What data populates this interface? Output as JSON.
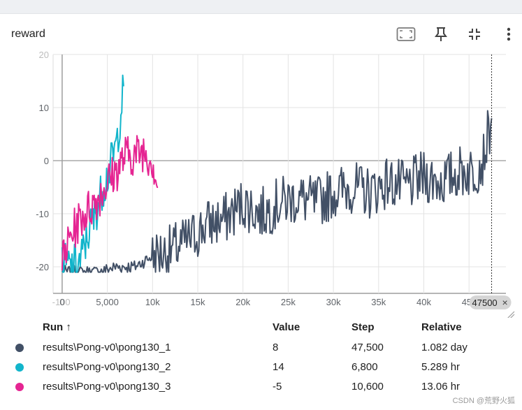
{
  "card": {
    "title": "reward"
  },
  "toolbar": {
    "icons": [
      "fit-screen-icon",
      "pin-icon",
      "collapse-icon",
      "more-vert-icon"
    ]
  },
  "chart_data": {
    "type": "line",
    "title": "reward",
    "xlim": [
      -1000,
      48000
    ],
    "ylim": [
      -25,
      20
    ],
    "x_ticks": [
      "-100",
      "0",
      "5,000",
      "10k",
      "15k",
      "20k",
      "25k",
      "30k",
      "35k",
      "40k",
      "45k"
    ],
    "y_ticks": [
      "20",
      "10",
      "0",
      "-10",
      "-20"
    ],
    "grid": true,
    "hover_step_label": "47500",
    "hover_close": "×",
    "series": [
      {
        "name": "results\\Pong-v0\\pong130_1",
        "color": "#425066",
        "x": [
          0,
          2000,
          4000,
          6000,
          8000,
          9000,
          10000,
          12000,
          14000,
          16000,
          18000,
          20000,
          22000,
          24000,
          26000,
          28000,
          30000,
          32000,
          34000,
          36000,
          38000,
          40000,
          42000,
          44000,
          45500,
          46500,
          47500
        ],
        "y": [
          -21,
          -21,
          -21,
          -20,
          -20,
          -19,
          -18,
          -17,
          -15,
          -12,
          -11,
          -8,
          -10,
          -8,
          -7,
          -8,
          -6,
          -5,
          -6,
          -4,
          -5,
          -3,
          -4,
          -2,
          -2,
          0,
          8
        ]
      },
      {
        "name": "results\\Pong-v0\\pong130_2",
        "color": "#12b5cb",
        "x": [
          0,
          1000,
          2000,
          2500,
          3000,
          3500,
          4000,
          4500,
          5000,
          5500,
          6000,
          6400,
          6800
        ],
        "y": [
          -19,
          -20,
          -19,
          -16,
          -13,
          -11,
          -8,
          -5,
          -3,
          0,
          3,
          8,
          14
        ]
      },
      {
        "name": "results\\Pong-v0\\pong130_3",
        "color": "#e52592",
        "x": [
          0,
          1000,
          2000,
          3000,
          4000,
          5000,
          6000,
          7000,
          8000,
          9000,
          10000,
          10600
        ],
        "y": [
          -19,
          -14,
          -11,
          -9,
          -7,
          -4,
          -2,
          1,
          1,
          2,
          0,
          -5
        ]
      }
    ]
  },
  "table": {
    "headers": {
      "run": "Run ↑",
      "value": "Value",
      "step": "Step",
      "relative": "Relative"
    },
    "rows": [
      {
        "color": "#425066",
        "run": "results\\Pong-v0\\pong130_1",
        "value": "8",
        "step": "47,500",
        "relative": "1.082 day"
      },
      {
        "color": "#12b5cb",
        "run": "results\\Pong-v0\\pong130_2",
        "value": "14",
        "step": "6,800",
        "relative": "5.289 hr"
      },
      {
        "color": "#e52592",
        "run": "results\\Pong-v0\\pong130_3",
        "value": "-5",
        "step": "10,600",
        "relative": "13.06 hr"
      }
    ]
  },
  "watermark": "CSDN @荒野火狐"
}
